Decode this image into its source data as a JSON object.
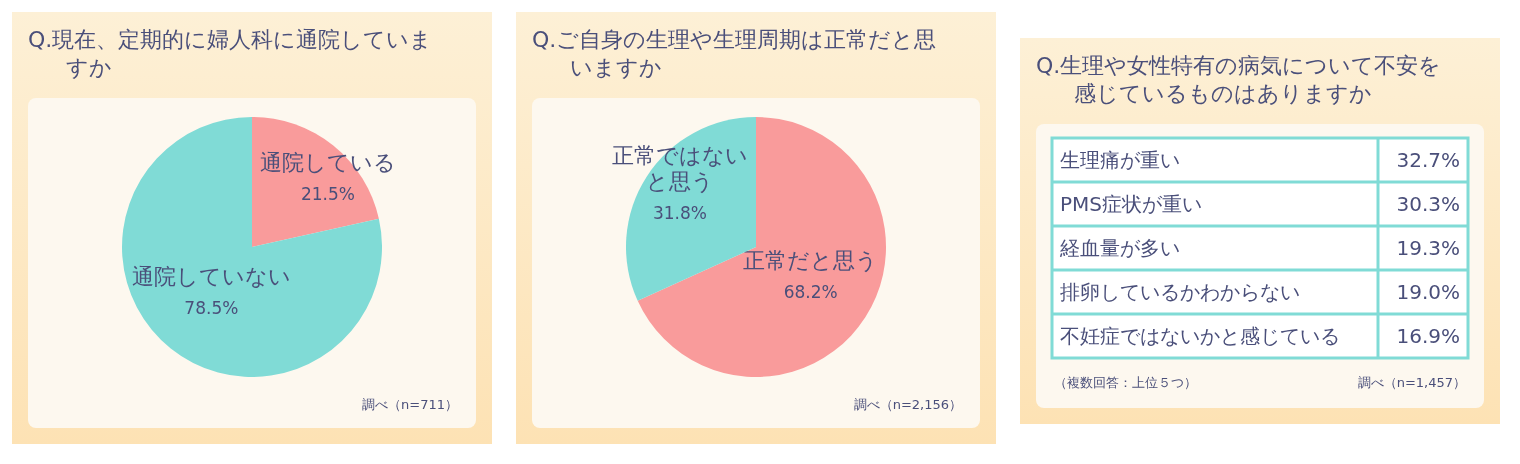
{
  "chart_data": [
    {
      "type": "pie",
      "title": "Q.現在、定期的に婦人科に通院していますか",
      "categories": [
        "通院している",
        "通院していない"
      ],
      "values": [
        21.5,
        78.5
      ],
      "colors": [
        "#f99b9b",
        "#80dbd6"
      ],
      "value_labels": [
        "21.5%",
        "78.5%"
      ],
      "annotations": [
        "調べ（n=711）"
      ]
    },
    {
      "type": "pie",
      "title": "Q.ご自身の生理や生理周期は正常だと思いますか",
      "categories": [
        "正常だと思う",
        "正常ではないと思う"
      ],
      "values": [
        68.2,
        31.8
      ],
      "colors": [
        "#f99b9b",
        "#80dbd6"
      ],
      "value_labels": [
        "68.2%",
        "31.8%"
      ],
      "annotations": [
        "調べ（n=2,156）"
      ]
    },
    {
      "type": "other",
      "title": "Q.生理や女性特有の病気について不安を感じているものはありますか",
      "categories": [
        "生理痛が重い",
        "PMS症状が重い",
        "経血量が多い",
        "排卵しているかわからない",
        "不妊症ではないかと感じている"
      ],
      "value_labels": [
        "32.7%",
        "30.3%",
        "19.3%",
        "19.0%",
        "16.9%"
      ],
      "annotations": [
        "（複数回答：上位５つ）",
        "調べ（n=1,457）"
      ]
    }
  ]
}
